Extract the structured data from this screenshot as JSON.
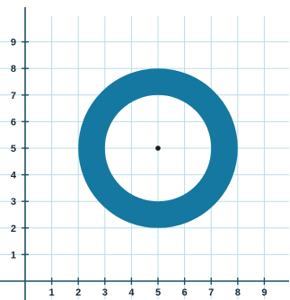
{
  "chart_data": {
    "type": "grid-figure",
    "x_ticks": [
      "1",
      "2",
      "3",
      "4",
      "5",
      "6",
      "7",
      "8",
      "9"
    ],
    "y_ticks": [
      "1",
      "2",
      "3",
      "4",
      "5",
      "6",
      "7",
      "8",
      "9"
    ],
    "xlim": [
      0,
      10
    ],
    "ylim": [
      0,
      10
    ],
    "grid": true,
    "shape": {
      "kind": "annulus",
      "center": [
        5,
        5
      ],
      "outer_radius": 3,
      "inner_radius": 2,
      "fill_color": "#1478a0"
    },
    "center_point": [
      5,
      5
    ],
    "colors": {
      "grid": "#b8dde6",
      "axis": "#1a5068",
      "point": "#1a1a1a"
    }
  }
}
